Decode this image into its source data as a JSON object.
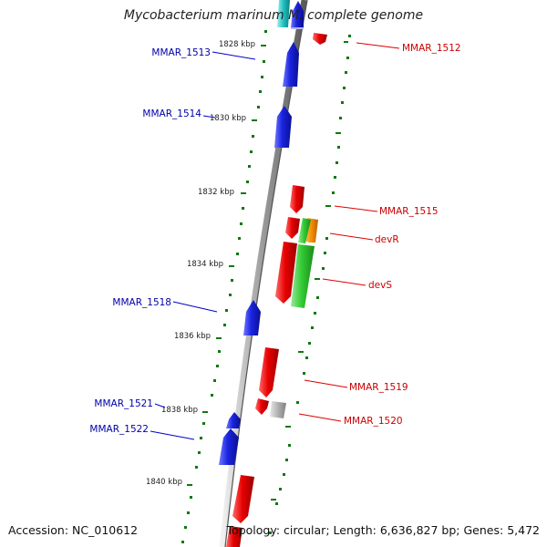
{
  "title": "Mycobacterium marinum M, complete genome",
  "footer": {
    "accession_label": "Accession:",
    "accession": "NC_010612",
    "topology_label": "Topology:",
    "topology": "circular",
    "length_label": "Length:",
    "length": "6,636,827 bp",
    "genes_label": "Genes:",
    "genes": "5,472"
  },
  "colors": {
    "blue_gene": "#0a14c8",
    "red_gene": "#e60000",
    "green_gene": "#22bb22",
    "orange_gene": "#f08000",
    "gray_gene": "#aaaaaa",
    "cyan_gene": "#20c0c0",
    "blue_label": "#0000aa",
    "red_label": "#cc0000",
    "tick_green": "#117711",
    "backbone": "#888888"
  },
  "kbp_ticks": [
    "1828 kbp",
    "1830 kbp",
    "1832 kbp",
    "1834 kbp",
    "1836 kbp",
    "1838 kbp",
    "1840 kbp"
  ],
  "left_labels": [
    "MMAR_1513",
    "MMAR_1514",
    "MMAR_1518",
    "MMAR_1521",
    "MMAR_1522"
  ],
  "right_labels": [
    "MMAR_1512",
    "MMAR_1515",
    "devR",
    "devS",
    "MMAR_1519",
    "MMAR_1520"
  ]
}
